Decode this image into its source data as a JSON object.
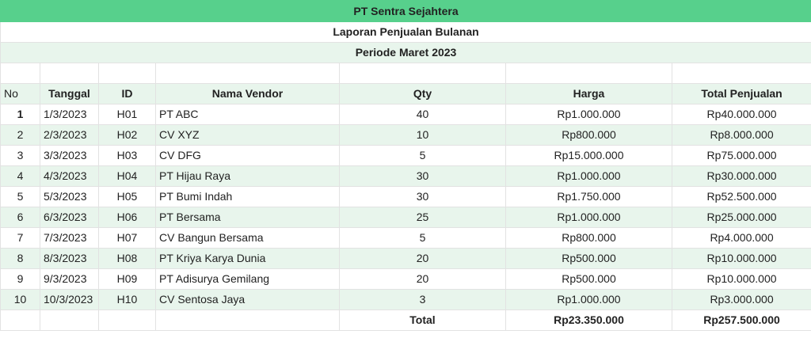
{
  "report": {
    "company": "PT Sentra Sejahtera",
    "title": "Laporan Penjualan Bulanan",
    "period": "Periode Maret 2023"
  },
  "columns": {
    "no": "No",
    "date": "Tanggal",
    "id": "ID",
    "vendor": "Nama Vendor",
    "qty": "Qty",
    "price": "Harga",
    "total": "Total Penjualan"
  },
  "rows": [
    {
      "no": "1",
      "date": "1/3/2023",
      "id": "H01",
      "vendor": "PT ABC",
      "qty": "40",
      "price": "Rp1.000.000",
      "total": "Rp40.000.000"
    },
    {
      "no": "2",
      "date": "2/3/2023",
      "id": "H02",
      "vendor": "CV XYZ",
      "qty": "10",
      "price": "Rp800.000",
      "total": "Rp8.000.000"
    },
    {
      "no": "3",
      "date": "3/3/2023",
      "id": "H03",
      "vendor": "CV DFG",
      "qty": "5",
      "price": "Rp15.000.000",
      "total": "Rp75.000.000"
    },
    {
      "no": "4",
      "date": "4/3/2023",
      "id": "H04",
      "vendor": "PT Hijau Raya",
      "qty": "30",
      "price": "Rp1.000.000",
      "total": "Rp30.000.000"
    },
    {
      "no": "5",
      "date": "5/3/2023",
      "id": "H05",
      "vendor": "PT Bumi Indah",
      "qty": "30",
      "price": "Rp1.750.000",
      "total": "Rp52.500.000"
    },
    {
      "no": "6",
      "date": "6/3/2023",
      "id": "H06",
      "vendor": "PT Bersama",
      "qty": "25",
      "price": "Rp1.000.000",
      "total": "Rp25.000.000"
    },
    {
      "no": "7",
      "date": "7/3/2023",
      "id": "H07",
      "vendor": "CV Bangun Bersama",
      "qty": "5",
      "price": "Rp800.000",
      "total": "Rp4.000.000"
    },
    {
      "no": "8",
      "date": "8/3/2023",
      "id": "H08",
      "vendor": "PT Kriya Karya Dunia",
      "qty": "20",
      "price": "Rp500.000",
      "total": "Rp10.000.000"
    },
    {
      "no": "9",
      "date": "9/3/2023",
      "id": "H09",
      "vendor": "PT Adisurya Gemilang",
      "qty": "20",
      "price": "Rp500.000",
      "total": "Rp10.000.000"
    },
    {
      "no": "10",
      "date": "10/3/2023",
      "id": "H10",
      "vendor": "CV Sentosa Jaya",
      "qty": "3",
      "price": "Rp1.000.000",
      "total": "Rp3.000.000"
    }
  ],
  "totals": {
    "label": "Total",
    "price": "Rp23.350.000",
    "total": "Rp257.500.000"
  },
  "colors": {
    "header_band": "#57d08c",
    "alt_band": "#e8f5ec"
  }
}
